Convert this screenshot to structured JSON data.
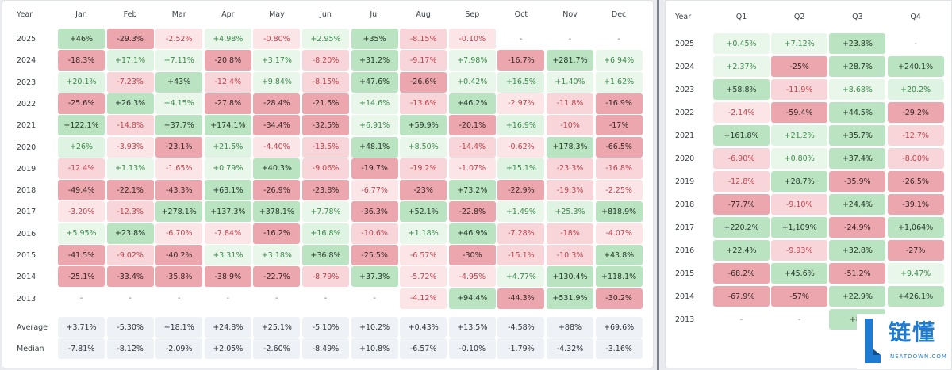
{
  "colors": {
    "positive_strong": "#b9e3c1",
    "positive_mid": "#dff3e2",
    "positive_light": "#e9f7eb",
    "negative_strong": "#eba7ad",
    "negative_mid": "#f7d5d8",
    "negative_light": "#fbe5e7",
    "stat_bg": "#eef1f6",
    "brand_blue": "#1e7bd0"
  },
  "monthly": {
    "year_header": "Year",
    "months": [
      "Jan",
      "Feb",
      "Mar",
      "Apr",
      "May",
      "Jun",
      "Jul",
      "Aug",
      "Sep",
      "Oct",
      "Nov",
      "Dec"
    ],
    "rows": [
      {
        "year": "2025",
        "values": [
          [
            "+46%",
            "pos3"
          ],
          [
            "-29.3%",
            "neg3"
          ],
          [
            "-2.52%",
            "neg2"
          ],
          [
            "+4.98%",
            "pos2"
          ],
          [
            "-0.80%",
            "neg2"
          ],
          [
            "+2.95%",
            "pos2"
          ],
          [
            "+35%",
            "pos3"
          ],
          [
            "-8.15%",
            "neg1"
          ],
          [
            "-0.10%",
            "neg2"
          ],
          [
            "-",
            "none"
          ],
          [
            "-",
            "none"
          ],
          [
            "-",
            "none"
          ]
        ]
      },
      {
        "year": "2024",
        "values": [
          [
            "-18.3%",
            "neg3"
          ],
          [
            "+17.1%",
            "pos1"
          ],
          [
            "+7.11%",
            "pos2"
          ],
          [
            "-20.8%",
            "neg3"
          ],
          [
            "+3.17%",
            "pos2"
          ],
          [
            "-8.20%",
            "neg1"
          ],
          [
            "+31.2%",
            "pos3"
          ],
          [
            "-9.17%",
            "neg1"
          ],
          [
            "+7.98%",
            "pos2"
          ],
          [
            "-16.7%",
            "neg3"
          ],
          [
            "+281.7%",
            "pos3"
          ],
          [
            "+6.94%",
            "pos2"
          ]
        ]
      },
      {
        "year": "2023",
        "values": [
          [
            "+20.1%",
            "pos1"
          ],
          [
            "-7.23%",
            "neg1"
          ],
          [
            "+43%",
            "pos3"
          ],
          [
            "-12.4%",
            "neg1"
          ],
          [
            "+9.84%",
            "pos2"
          ],
          [
            "-8.15%",
            "neg1"
          ],
          [
            "+47.6%",
            "pos3"
          ],
          [
            "-26.6%",
            "neg3"
          ],
          [
            "+0.42%",
            "pos2"
          ],
          [
            "+16.5%",
            "pos1"
          ],
          [
            "+1.40%",
            "pos2"
          ],
          [
            "+1.62%",
            "pos2"
          ]
        ]
      },
      {
        "year": "2022",
        "values": [
          [
            "-25.6%",
            "neg3"
          ],
          [
            "+26.3%",
            "pos3"
          ],
          [
            "+4.15%",
            "pos2"
          ],
          [
            "-27.8%",
            "neg3"
          ],
          [
            "-28.4%",
            "neg3"
          ],
          [
            "-21.5%",
            "neg3"
          ],
          [
            "+14.6%",
            "pos2"
          ],
          [
            "-13.6%",
            "neg1"
          ],
          [
            "+46.2%",
            "pos3"
          ],
          [
            "-2.97%",
            "neg2"
          ],
          [
            "-11.8%",
            "neg1"
          ],
          [
            "-16.9%",
            "neg3"
          ]
        ]
      },
      {
        "year": "2021",
        "values": [
          [
            "+122.1%",
            "pos3"
          ],
          [
            "-14.8%",
            "neg1"
          ],
          [
            "+37.7%",
            "pos3"
          ],
          [
            "+174.1%",
            "pos3"
          ],
          [
            "-34.4%",
            "neg3"
          ],
          [
            "-32.5%",
            "neg3"
          ],
          [
            "+6.91%",
            "pos2"
          ],
          [
            "+59.9%",
            "pos3"
          ],
          [
            "-20.1%",
            "neg3"
          ],
          [
            "+16.9%",
            "pos1"
          ],
          [
            "-10%",
            "neg1"
          ],
          [
            "-17%",
            "neg3"
          ]
        ]
      },
      {
        "year": "2020",
        "values": [
          [
            "+26%",
            "pos1"
          ],
          [
            "-3.93%",
            "neg2"
          ],
          [
            "-23.1%",
            "neg3"
          ],
          [
            "+21.5%",
            "pos1"
          ],
          [
            "-4.40%",
            "neg2"
          ],
          [
            "-13.5%",
            "neg1"
          ],
          [
            "+48.1%",
            "pos3"
          ],
          [
            "+8.50%",
            "pos2"
          ],
          [
            "-14.4%",
            "neg1"
          ],
          [
            "-0.62%",
            "neg2"
          ],
          [
            "+178.3%",
            "pos3"
          ],
          [
            "-66.5%",
            "neg3"
          ]
        ]
      },
      {
        "year": "2019",
        "values": [
          [
            "-12.4%",
            "neg1"
          ],
          [
            "+1.13%",
            "pos2"
          ],
          [
            "-1.65%",
            "neg2"
          ],
          [
            "+0.79%",
            "pos2"
          ],
          [
            "+40.3%",
            "pos3"
          ],
          [
            "-9.06%",
            "neg1"
          ],
          [
            "-19.7%",
            "neg3"
          ],
          [
            "-19.2%",
            "neg1"
          ],
          [
            "-1.07%",
            "neg2"
          ],
          [
            "+15.1%",
            "pos1"
          ],
          [
            "-23.3%",
            "neg1"
          ],
          [
            "-16.8%",
            "neg1"
          ]
        ]
      },
      {
        "year": "2018",
        "values": [
          [
            "-49.4%",
            "neg3"
          ],
          [
            "-22.1%",
            "neg3"
          ],
          [
            "-43.3%",
            "neg3"
          ],
          [
            "+63.1%",
            "pos3"
          ],
          [
            "-26.9%",
            "neg3"
          ],
          [
            "-23.8%",
            "neg3"
          ],
          [
            "-6.77%",
            "neg2"
          ],
          [
            "-23%",
            "neg3"
          ],
          [
            "+73.2%",
            "pos3"
          ],
          [
            "-22.9%",
            "neg3"
          ],
          [
            "-19.3%",
            "neg1"
          ],
          [
            "-2.25%",
            "neg2"
          ]
        ]
      },
      {
        "year": "2017",
        "values": [
          [
            "-3.20%",
            "neg2"
          ],
          [
            "-12.3%",
            "neg1"
          ],
          [
            "+278.1%",
            "pos3"
          ],
          [
            "+137.3%",
            "pos3"
          ],
          [
            "+378.1%",
            "pos3"
          ],
          [
            "+7.78%",
            "pos2"
          ],
          [
            "-36.3%",
            "neg3"
          ],
          [
            "+52.1%",
            "pos3"
          ],
          [
            "-22.8%",
            "neg3"
          ],
          [
            "+1.49%",
            "pos2"
          ],
          [
            "+25.3%",
            "pos1"
          ],
          [
            "+818.9%",
            "pos3"
          ]
        ]
      },
      {
        "year": "2016",
        "values": [
          [
            "+5.95%",
            "pos2"
          ],
          [
            "+23.8%",
            "pos3"
          ],
          [
            "-6.70%",
            "neg2"
          ],
          [
            "-7.84%",
            "neg2"
          ],
          [
            "-16.2%",
            "neg3"
          ],
          [
            "+16.8%",
            "pos1"
          ],
          [
            "-10.6%",
            "neg1"
          ],
          [
            "+1.18%",
            "pos2"
          ],
          [
            "+46.9%",
            "pos3"
          ],
          [
            "-7.28%",
            "neg1"
          ],
          [
            "-18%",
            "neg1"
          ],
          [
            "-4.07%",
            "neg2"
          ]
        ]
      },
      {
        "year": "2015",
        "values": [
          [
            "-41.5%",
            "neg3"
          ],
          [
            "-9.02%",
            "neg1"
          ],
          [
            "-40.2%",
            "neg3"
          ],
          [
            "+3.31%",
            "pos2"
          ],
          [
            "+3.18%",
            "pos2"
          ],
          [
            "+36.8%",
            "pos3"
          ],
          [
            "-25.5%",
            "neg3"
          ],
          [
            "-6.57%",
            "neg2"
          ],
          [
            "-30%",
            "neg3"
          ],
          [
            "-15.1%",
            "neg1"
          ],
          [
            "-10.3%",
            "neg1"
          ],
          [
            "+43.8%",
            "pos3"
          ]
        ]
      },
      {
        "year": "2014",
        "values": [
          [
            "-25.1%",
            "neg3"
          ],
          [
            "-33.4%",
            "neg3"
          ],
          [
            "-35.8%",
            "neg3"
          ],
          [
            "-38.9%",
            "neg3"
          ],
          [
            "-22.7%",
            "neg3"
          ],
          [
            "-8.79%",
            "neg1"
          ],
          [
            "+37.3%",
            "pos3"
          ],
          [
            "-5.72%",
            "neg2"
          ],
          [
            "-4.95%",
            "neg2"
          ],
          [
            "+4.77%",
            "pos2"
          ],
          [
            "+130.4%",
            "pos3"
          ],
          [
            "+118.1%",
            "pos3"
          ]
        ]
      },
      {
        "year": "2013",
        "values": [
          [
            "-",
            "none"
          ],
          [
            "-",
            "none"
          ],
          [
            "-",
            "none"
          ],
          [
            "-",
            "none"
          ],
          [
            "-",
            "none"
          ],
          [
            "-",
            "none"
          ],
          [
            "-",
            "none"
          ],
          [
            "-4.12%",
            "neg2"
          ],
          [
            "+94.4%",
            "pos3"
          ],
          [
            "-44.3%",
            "neg3"
          ],
          [
            "+531.9%",
            "pos3"
          ],
          [
            "-30.2%",
            "neg3"
          ]
        ]
      }
    ],
    "stats": [
      {
        "label": "Average",
        "values": [
          "+3.71%",
          "-5.30%",
          "+18.1%",
          "+24.8%",
          "+25.1%",
          "-5.10%",
          "+10.2%",
          "+0.43%",
          "+13.5%",
          "-4.58%",
          "+88%",
          "+69.6%"
        ]
      },
      {
        "label": "Median",
        "values": [
          "-7.81%",
          "-8.12%",
          "-2.09%",
          "+2.05%",
          "-2.60%",
          "-8.49%",
          "+10.8%",
          "-6.57%",
          "-0.10%",
          "-1.79%",
          "-4.32%",
          "-3.16%"
        ]
      }
    ]
  },
  "quarterly": {
    "year_header": "Year",
    "quarters": [
      "Q1",
      "Q2",
      "Q3",
      "Q4"
    ],
    "rows": [
      {
        "year": "2025",
        "values": [
          [
            "+0.45%",
            "pos2"
          ],
          [
            "+7.12%",
            "pos2"
          ],
          [
            "+23.8%",
            "pos3"
          ],
          [
            "-",
            "none"
          ]
        ]
      },
      {
        "year": "2024",
        "values": [
          [
            "+2.37%",
            "pos2"
          ],
          [
            "-25%",
            "neg3"
          ],
          [
            "+28.7%",
            "pos3"
          ],
          [
            "+240.1%",
            "pos3"
          ]
        ]
      },
      {
        "year": "2023",
        "values": [
          [
            "+58.8%",
            "pos3"
          ],
          [
            "-11.9%",
            "neg1"
          ],
          [
            "+8.68%",
            "pos2"
          ],
          [
            "+20.2%",
            "pos1"
          ]
        ]
      },
      {
        "year": "2022",
        "values": [
          [
            "-2.14%",
            "neg2"
          ],
          [
            "-59.4%",
            "neg3"
          ],
          [
            "+44.5%",
            "pos3"
          ],
          [
            "-29.2%",
            "neg3"
          ]
        ]
      },
      {
        "year": "2021",
        "values": [
          [
            "+161.8%",
            "pos3"
          ],
          [
            "+21.2%",
            "pos1"
          ],
          [
            "+35.7%",
            "pos3"
          ],
          [
            "-12.7%",
            "neg1"
          ]
        ]
      },
      {
        "year": "2020",
        "values": [
          [
            "-6.90%",
            "neg1"
          ],
          [
            "+0.80%",
            "pos2"
          ],
          [
            "+37.4%",
            "pos3"
          ],
          [
            "-8.00%",
            "neg1"
          ]
        ]
      },
      {
        "year": "2019",
        "values": [
          [
            "-12.8%",
            "neg1"
          ],
          [
            "+28.7%",
            "pos3"
          ],
          [
            "-35.9%",
            "neg3"
          ],
          [
            "-26.5%",
            "neg3"
          ]
        ]
      },
      {
        "year": "2018",
        "values": [
          [
            "-77.7%",
            "neg3"
          ],
          [
            "-9.10%",
            "neg1"
          ],
          [
            "+24.4%",
            "pos3"
          ],
          [
            "-39.1%",
            "neg3"
          ]
        ]
      },
      {
        "year": "2017",
        "values": [
          [
            "+220.2%",
            "pos3"
          ],
          [
            "+1,109%",
            "pos3"
          ],
          [
            "-24.9%",
            "neg3"
          ],
          [
            "+1,064%",
            "pos3"
          ]
        ]
      },
      {
        "year": "2016",
        "values": [
          [
            "+22.4%",
            "pos3"
          ],
          [
            "-9.93%",
            "neg1"
          ],
          [
            "+32.8%",
            "pos3"
          ],
          [
            "-27%",
            "neg3"
          ]
        ]
      },
      {
        "year": "2015",
        "values": [
          [
            "-68.2%",
            "neg3"
          ],
          [
            "+45.6%",
            "pos3"
          ],
          [
            "-51.2%",
            "neg3"
          ],
          [
            "+9.47%",
            "pos2"
          ]
        ]
      },
      {
        "year": "2014",
        "values": [
          [
            "-67.9%",
            "neg3"
          ],
          [
            "-57%",
            "neg3"
          ],
          [
            "+22.9%",
            "pos3"
          ],
          [
            "+426.1%",
            "pos3"
          ]
        ]
      },
      {
        "year": "2013",
        "values": [
          [
            "-",
            "none"
          ],
          [
            "-",
            "none"
          ],
          [
            "+86",
            "pos3"
          ],
          [
            "",
            "none"
          ]
        ]
      }
    ]
  },
  "logo": {
    "text": "链懂",
    "sub": "NEATDOWN.COM"
  }
}
